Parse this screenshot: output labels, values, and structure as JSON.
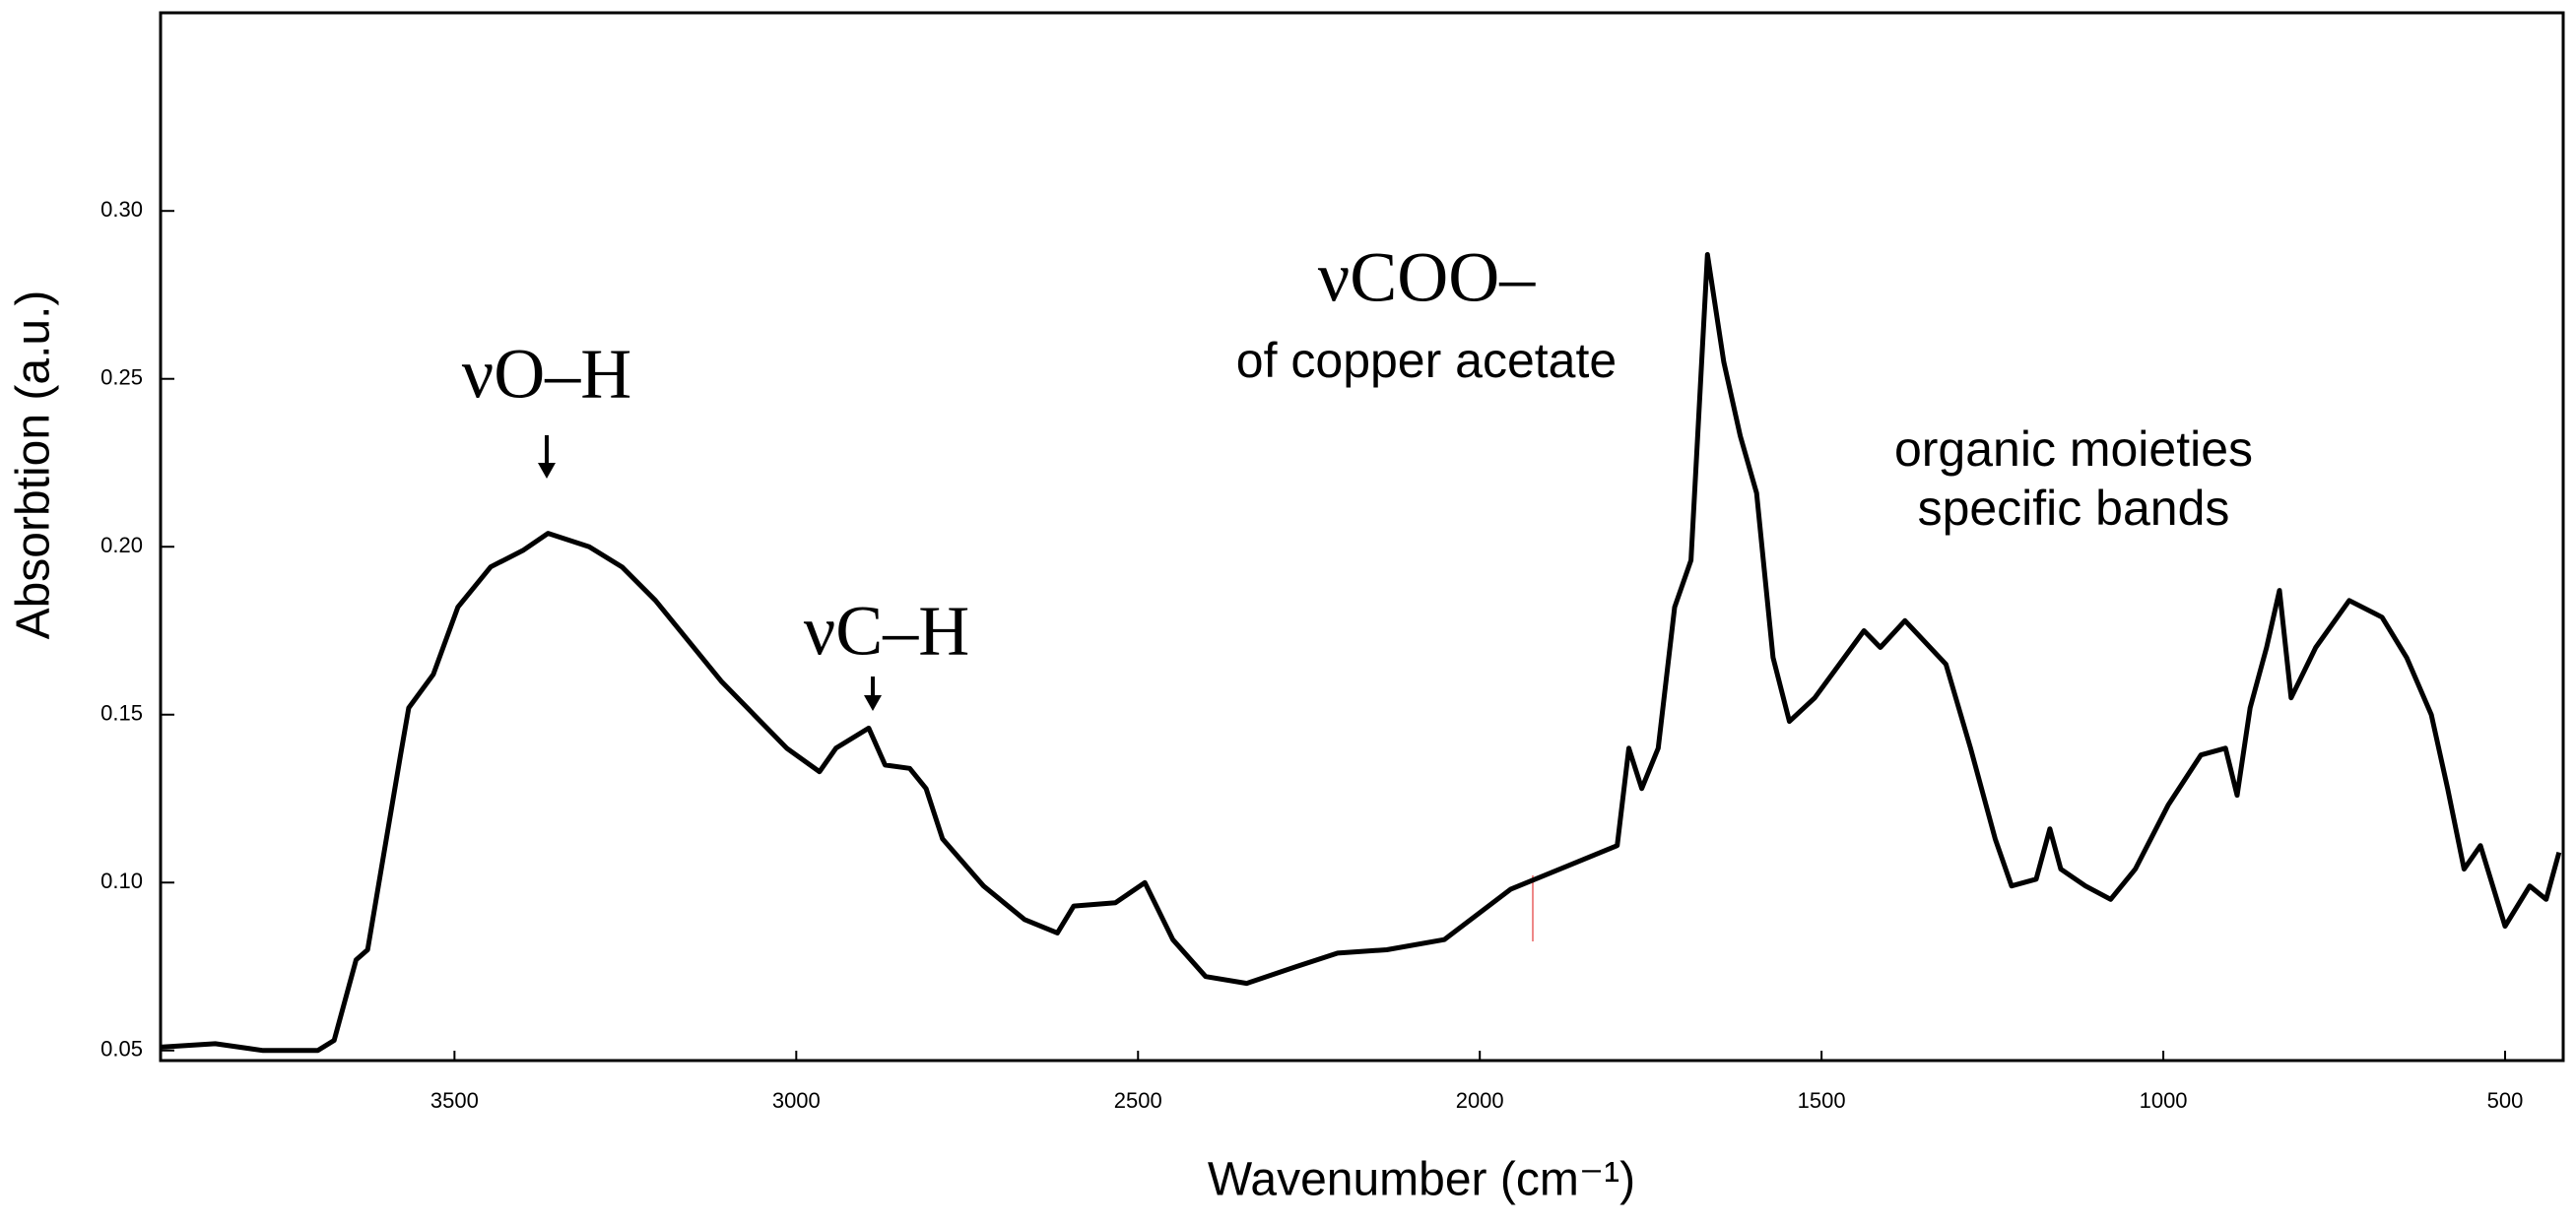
{
  "chart_data": {
    "type": "line",
    "x_label": "Wavenumber (cm⁻¹)",
    "y_label": "Absorbtion (a.u.)",
    "annotations": [
      "νO–H",
      "νC–H",
      "νCOO–",
      "of copper acetate",
      "organic moieties",
      "specific bands"
    ],
    "color": "#000000",
    "x": [
      3930,
      3850,
      3780,
      3700,
      3676,
      3644,
      3627,
      3603,
      3579,
      3567,
      3531,
      3495,
      3447,
      3399,
      3363,
      3303,
      3255,
      3206,
      3158,
      3110,
      3062,
      3014,
      2966,
      2942,
      2894,
      2870,
      2834,
      2810,
      2786,
      2726,
      2666,
      2618,
      2594,
      2533,
      2490,
      2449,
      2401,
      2341,
      2268,
      2208,
      2136,
      2052,
      1955,
      1859,
      1799,
      1782,
      1763,
      1739,
      1715,
      1691,
      1667,
      1643,
      1619,
      1595,
      1571,
      1547,
      1510,
      1474,
      1438,
      1414,
      1378,
      1318,
      1282,
      1246,
      1222,
      1186,
      1166,
      1150,
      1114,
      1077,
      1041,
      993,
      945,
      909,
      892,
      873,
      849,
      830,
      813,
      777,
      728,
      680,
      644,
      608,
      584,
      560,
      536,
      500,
      464,
      440,
      421
    ],
    "values": [
      0.051,
      0.052,
      0.05,
      0.05,
      0.053,
      0.077,
      0.08,
      0.109,
      0.138,
      0.152,
      0.162,
      0.182,
      0.194,
      0.199,
      0.204,
      0.2,
      0.194,
      0.184,
      0.172,
      0.16,
      0.15,
      0.14,
      0.133,
      0.14,
      0.146,
      0.135,
      0.134,
      0.128,
      0.113,
      0.099,
      0.089,
      0.085,
      0.093,
      0.094,
      0.1,
      0.083,
      0.072,
      0.07,
      0.075,
      0.079,
      0.08,
      0.083,
      0.098,
      0.106,
      0.111,
      0.14,
      0.128,
      0.14,
      0.182,
      0.196,
      0.287,
      0.255,
      0.233,
      0.216,
      0.167,
      0.148,
      0.155,
      0.165,
      0.175,
      0.17,
      0.178,
      0.165,
      0.14,
      0.113,
      0.099,
      0.101,
      0.116,
      0.104,
      0.099,
      0.095,
      0.104,
      0.123,
      0.138,
      0.14,
      0.126,
      0.152,
      0.17,
      0.187,
      0.155,
      0.17,
      0.184,
      0.179,
      0.167,
      0.15,
      0.128,
      0.104,
      0.111,
      0.087,
      0.099,
      0.095,
      0.109
    ],
    "xlim": [
      3930,
      415
    ],
    "ylim": [
      0.047,
      0.359
    ],
    "xticks": [
      3500,
      3000,
      2500,
      2000,
      1500,
      1000,
      500
    ],
    "yticks": [
      0.05,
      {
        "value": 0.1,
        "label": "0.10"
      },
      0.15,
      {
        "value": 0.2,
        "label": "0.20"
      },
      0.25,
      {
        "value": 0.3,
        "label": "0.30"
      }
    ]
  }
}
